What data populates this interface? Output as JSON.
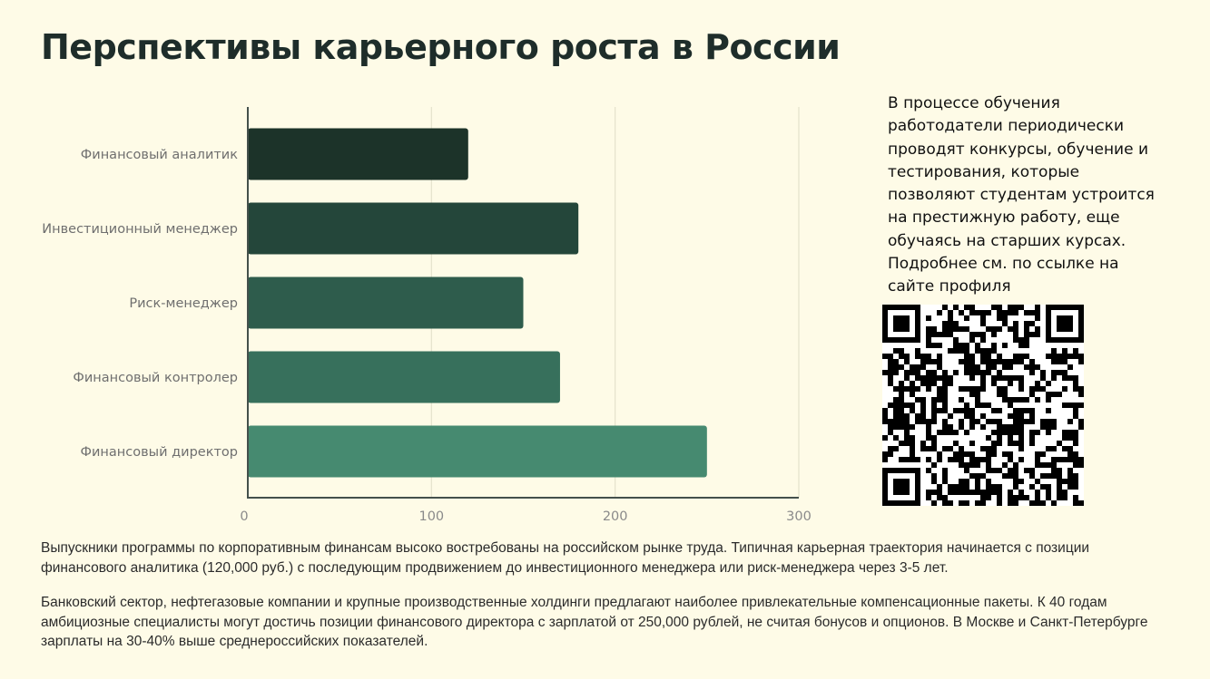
{
  "title": "Перспективы карьерного роста в России",
  "chart_data": {
    "type": "bar",
    "orientation": "horizontal",
    "categories": [
      "Финансовый аналитик",
      "Инвестиционный менеджер",
      "Риск-менеджер",
      "Финансовый контролер",
      "Финансовый директор"
    ],
    "values": [
      120,
      180,
      150,
      170,
      250
    ],
    "xlim": [
      0,
      300
    ],
    "x_ticks": [
      "0",
      "100",
      "200",
      "300"
    ],
    "grid": true,
    "colors": [
      "#1c3329",
      "#24463a",
      "#2e5c4c",
      "#37705c",
      "#468a70"
    ]
  },
  "side_text": "В процессе обучения работодатели периодически проводят конкурсы, обучение и тестирования, которые позволяют студентам устроится на престижную работу, еще обучаясь на старших курсах. Подробнее см. по ссылке на сайте профиля",
  "paragraphs": [
    "Выпускники программы по корпоративным финансам высоко востребованы на российском рынке труда. Типичная карьерная траектория начинается с позиции финансового аналитика (120,000 руб.) с последующим продвижением до инвестиционного менеджера или риск-менеджера через 3-5 лет.",
    "Банковский сектор, нефтегазовые компании и крупные производственные холдинги предлагают наиболее привлекательные компенсационные пакеты. К 40 годам амбициозные специалисты могут достичь позиции финансового директора с зарплатой от 250,000 рублей, не считая бонусов и опционов. В Москве и Санкт-Петербурге зарплаты на 30-40% выше среднероссийских показателей."
  ]
}
